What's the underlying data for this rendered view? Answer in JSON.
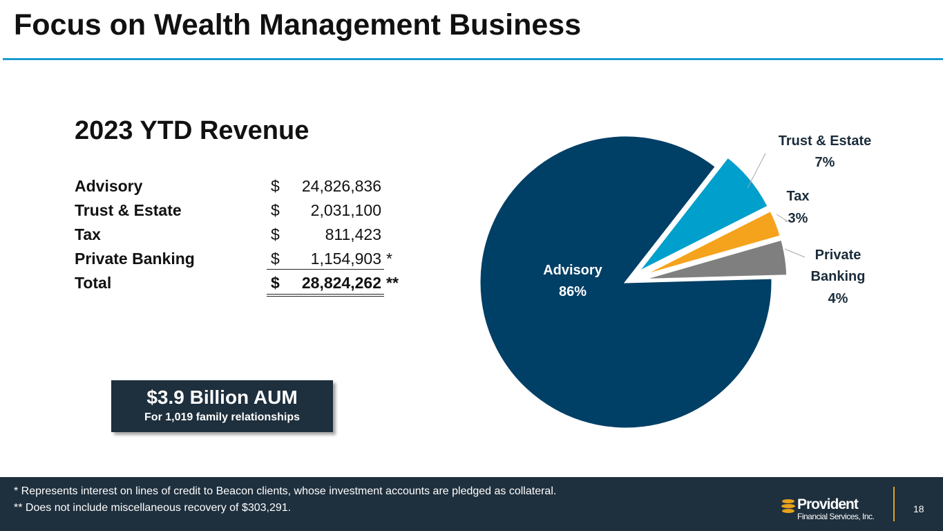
{
  "page_title": "Focus on Wealth Management Business",
  "revenue": {
    "heading": "2023 YTD Revenue",
    "rows": [
      {
        "label": "Advisory",
        "dollar": "$",
        "amount": "24,826,836",
        "note": ""
      },
      {
        "label": "Trust & Estate",
        "dollar": "$",
        "amount": "2,031,100",
        "note": ""
      },
      {
        "label": "Tax",
        "dollar": "$",
        "amount": "811,423",
        "note": ""
      },
      {
        "label": "Private Banking",
        "dollar": "$",
        "amount": "1,154,903",
        "note": "*"
      },
      {
        "label": "Total",
        "dollar": "$",
        "amount": "28,824,262",
        "note": "**"
      }
    ]
  },
  "aum": {
    "main": "$3.9 Billion AUM",
    "sub": "For 1,019 family relationships"
  },
  "chart_data": {
    "type": "pie",
    "title": "",
    "slices": [
      {
        "name": "Advisory",
        "pct": "86%",
        "value": 86,
        "color": "#003f66"
      },
      {
        "name": "Trust & Estate",
        "pct": "7%",
        "value": 7,
        "color": "#009fcc"
      },
      {
        "name": "Tax",
        "pct": "3%",
        "value": 3,
        "color": "#f5a31d"
      },
      {
        "name": "Private Banking",
        "pct": "4%",
        "value": 4,
        "color": "#7f7f7f"
      }
    ]
  },
  "footer": {
    "note1": "* Represents interest on lines of credit to Beacon clients, whose investment accounts are pledged as collateral.",
    "note2": "** Does not include miscellaneous recovery of $303,291.",
    "logo_name": "Provident",
    "logo_sub": "Financial Services, Inc.",
    "page_number": "18"
  },
  "colors": {
    "accent_rule": "#1a9cd0",
    "footer_bg": "#1e2f3d",
    "logo_accent": "#e8a21e"
  }
}
